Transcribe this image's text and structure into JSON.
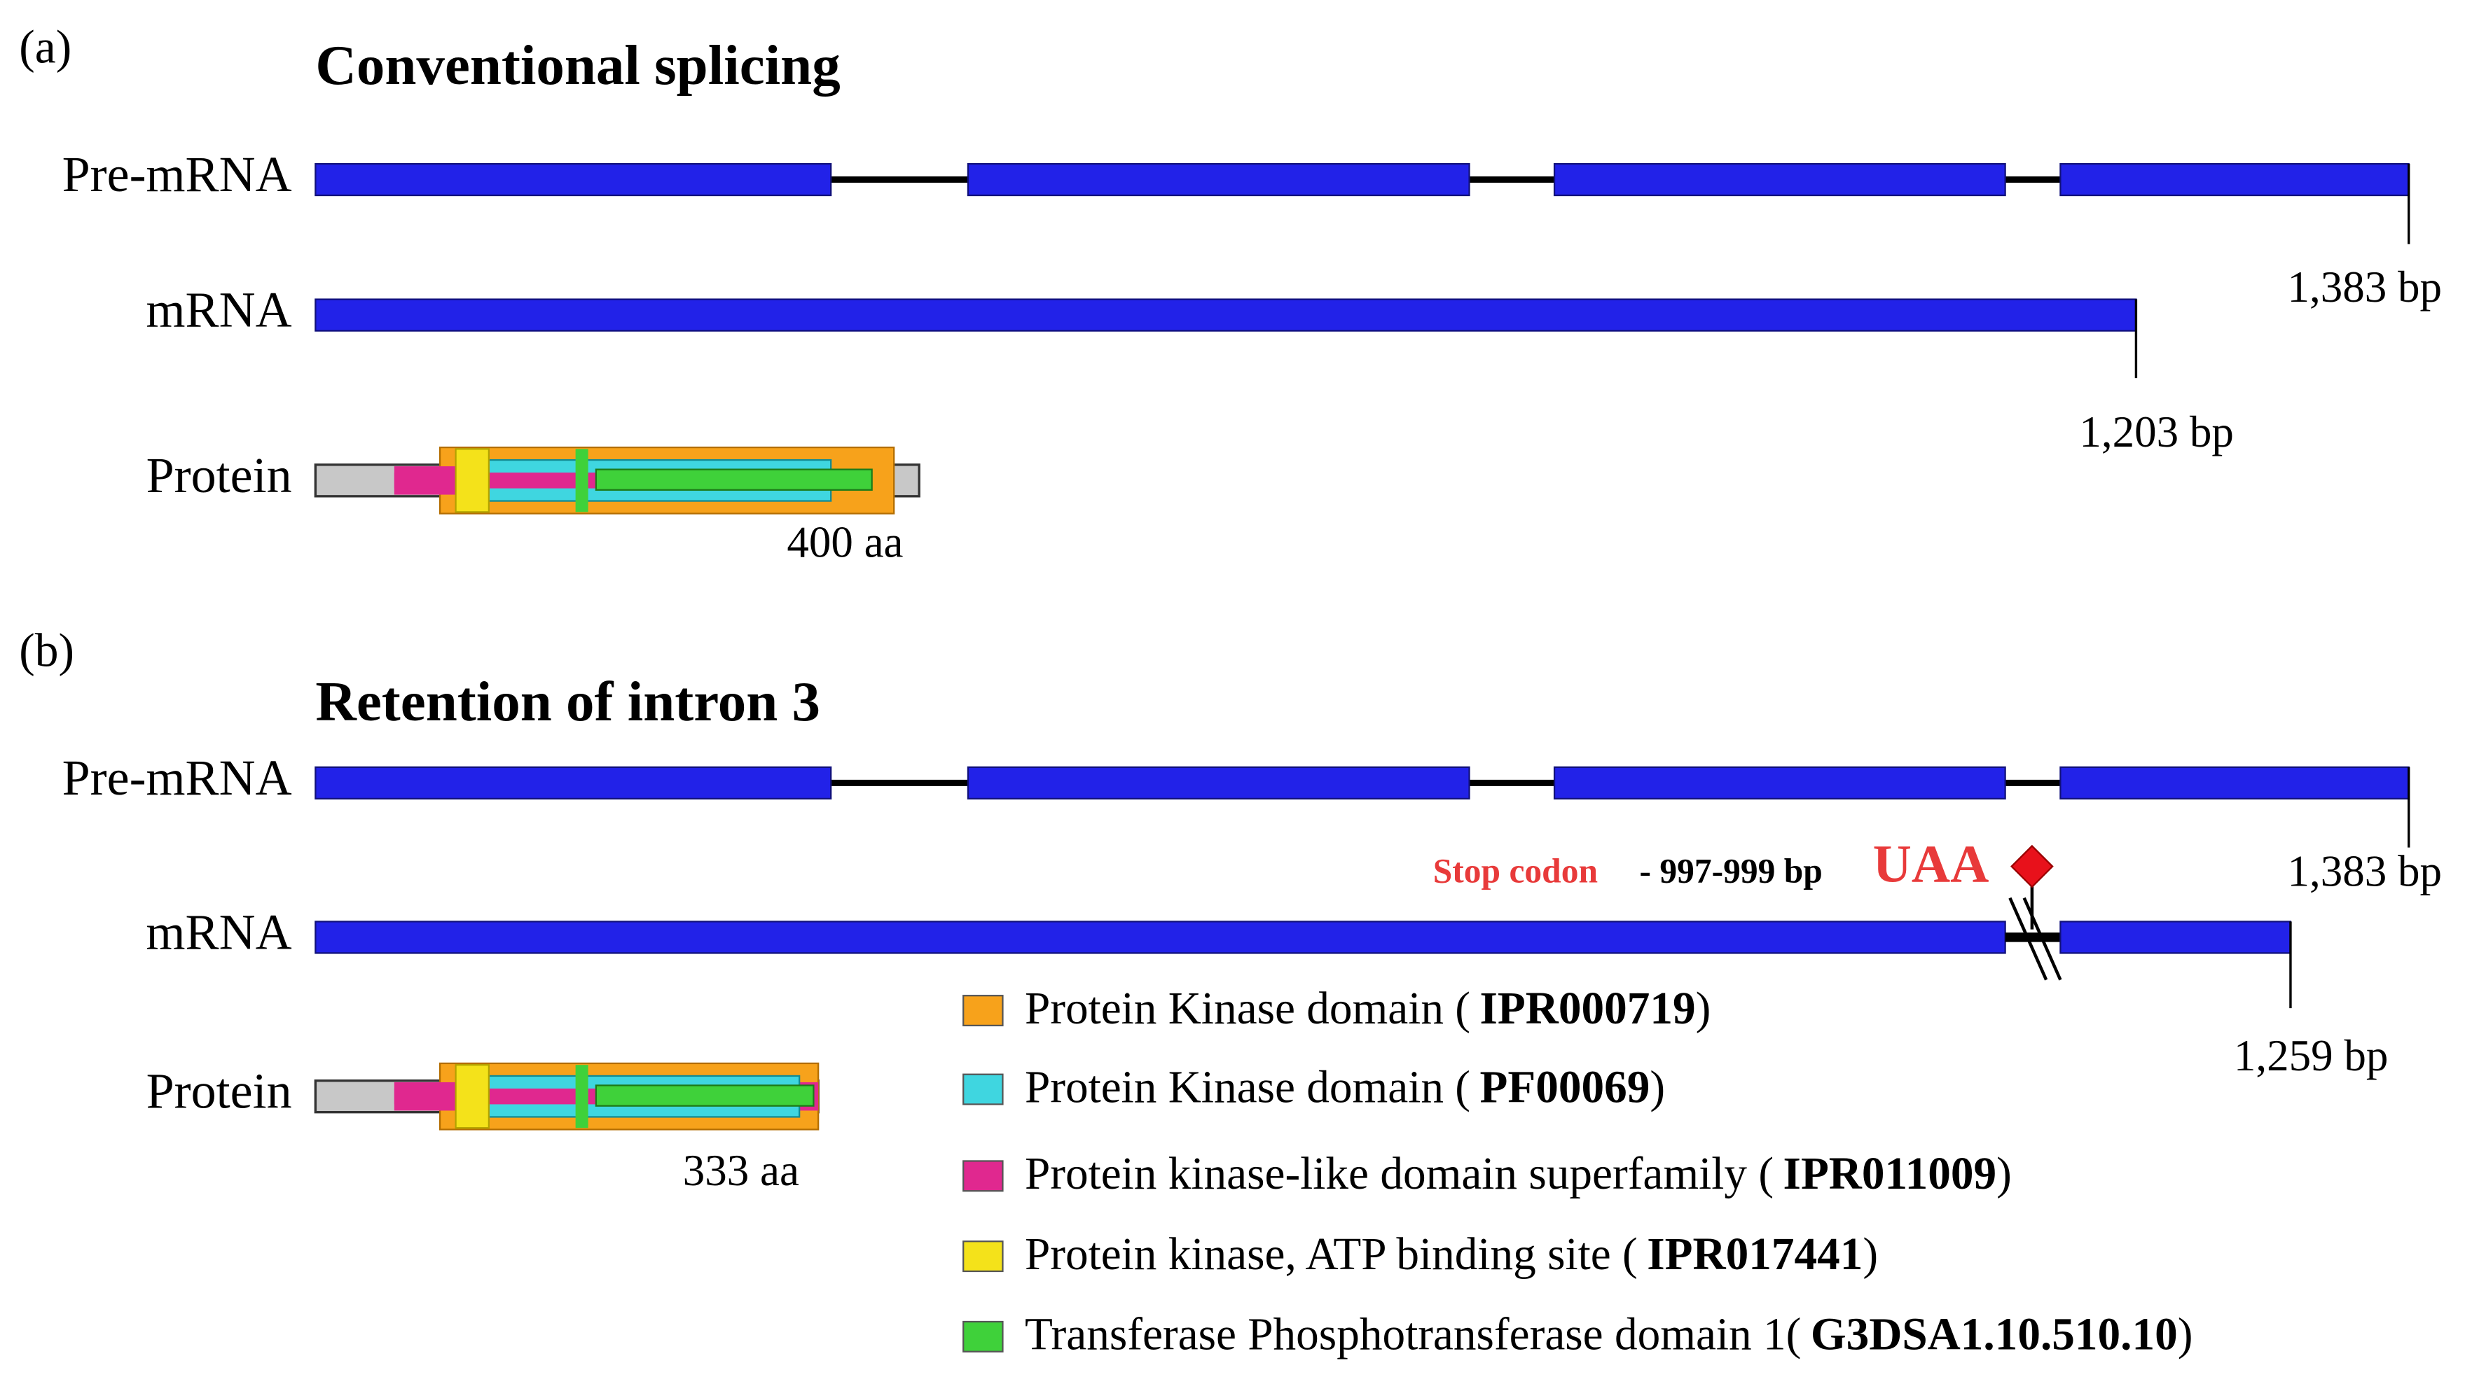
{
  "panels": [
    {
      "tag": "(a)",
      "title": "Conventional splicing",
      "pre_mrna": {
        "label": "Pre-mRNA",
        "length": "1,383 bp"
      },
      "mrna": {
        "label": "mRNA",
        "length": "1,203 bp"
      },
      "protein": {
        "label": "Protein",
        "length": "400 aa"
      }
    },
    {
      "tag": "(b)",
      "title": "Retention of intron 3",
      "pre_mrna": {
        "label": "Pre-mRNA",
        "length": "1,383 bp"
      },
      "mrna": {
        "label": "mRNA",
        "length": "1,259 bp"
      },
      "protein": {
        "label": "Protein",
        "length": "333 aa"
      },
      "stop_codon": {
        "label": "Stop codon",
        "position": "- 997-999 bp",
        "codon": "UAA"
      }
    }
  ],
  "legend": [
    {
      "color": "#f7a21b",
      "label": "Protein Kinase domain (",
      "id": "IPR000719",
      "close": ")"
    },
    {
      "color": "#3fd6e0",
      "label": "Protein Kinase domain (",
      "id": "PF00069",
      "close": ")"
    },
    {
      "color": "#e0288f",
      "label": "Protein kinase-like domain superfamily (",
      "id": "IPR011009",
      "close": ")"
    },
    {
      "color": "#f4e21a",
      "label": "Protein kinase, ATP binding site (",
      "id": "IPR017441",
      "close": ")"
    },
    {
      "color": "#3fd13a",
      "label": "Transferase Phosphotransferase domain 1(",
      "id": "G3DSA1.10.510.10",
      "close": ")"
    }
  ]
}
